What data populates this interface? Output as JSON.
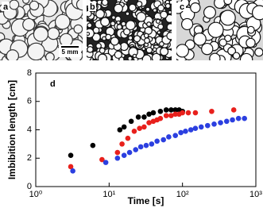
{
  "image_labels": [
    "a",
    "b",
    "c"
  ],
  "scale_bar": "5 mm",
  "chart_data": {
    "type": "scatter",
    "panel_label": "d",
    "x_label": "Time [s]",
    "y_label": "Imbibition length [cm]",
    "xscale": "log",
    "xlim": [
      1,
      1000
    ],
    "xticks": [
      {
        "value": 1,
        "label": "10⁰"
      },
      {
        "value": 10,
        "label": "10¹"
      },
      {
        "value": 100,
        "label": "10²"
      },
      {
        "value": 1000,
        "label": "10³"
      }
    ],
    "ylim": [
      0,
      8
    ],
    "yticks": [
      0,
      2,
      4,
      6,
      8
    ],
    "series": [
      {
        "color": "#000000",
        "x": [
          3,
          6,
          14,
          16,
          20,
          25,
          30,
          35,
          40,
          50,
          60,
          70,
          80,
          90,
          100
        ],
        "values": [
          2.2,
          2.9,
          4.0,
          4.2,
          4.6,
          4.9,
          4.9,
          5.1,
          5.2,
          5.3,
          5.4,
          5.4,
          5.4,
          5.4,
          5.3
        ]
      },
      {
        "color": "#e8201c",
        "x": [
          3,
          8,
          13,
          15,
          18,
          22,
          26,
          30,
          35,
          40,
          45,
          50,
          60,
          70,
          80,
          90,
          100,
          120,
          150,
          250,
          500
        ],
        "values": [
          1.4,
          1.9,
          2.4,
          3.0,
          3.4,
          3.9,
          4.1,
          4.2,
          4.5,
          4.6,
          4.7,
          4.8,
          5.0,
          5.0,
          5.1,
          5.1,
          5.2,
          5.2,
          5.2,
          5.3,
          5.4
        ]
      },
      {
        "color": "#2b3fe0",
        "x": [
          3.2,
          9,
          13,
          16,
          19,
          23,
          27,
          32,
          38,
          45,
          55,
          65,
          80,
          95,
          110,
          130,
          150,
          180,
          220,
          270,
          330,
          400,
          480,
          580,
          700
        ],
        "values": [
          1.1,
          1.7,
          2.0,
          2.2,
          2.4,
          2.6,
          2.8,
          2.9,
          3.0,
          3.2,
          3.3,
          3.5,
          3.6,
          3.8,
          3.9,
          4.0,
          4.1,
          4.2,
          4.3,
          4.4,
          4.5,
          4.6,
          4.7,
          4.8,
          4.8
        ]
      }
    ]
  }
}
